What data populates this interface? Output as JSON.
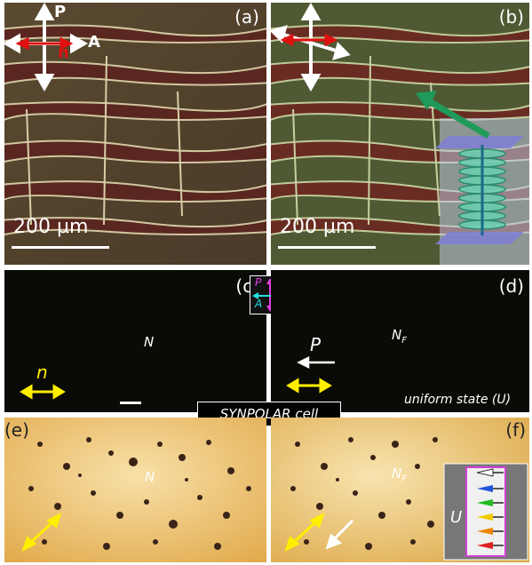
{
  "panels": {
    "a": {
      "label": "(a)",
      "scale": "200 µm",
      "polarizer": "P",
      "analyzer": "A",
      "director": "n"
    },
    "b": {
      "label": "(b)",
      "scale": "200 µm"
    },
    "c": {
      "label": "(c)",
      "phase": "N",
      "director": "n"
    },
    "d": {
      "label": "(d)",
      "phase": "N",
      "phase_sub": "F",
      "polarization": "P",
      "state": "uniform state (U)"
    },
    "e": {
      "label": "(e)",
      "phase": "N"
    },
    "f": {
      "label": "(f)",
      "phase": "N",
      "phase_sub": "F",
      "inset_label": "U"
    }
  },
  "crossed_polarizer_key": {
    "p": "P",
    "a": "A",
    "p_color": "#e040e0",
    "a_color": "#20e0e0"
  },
  "caption": "SYNPOLAR cell",
  "colors": {
    "director_arrow": "#ffee00",
    "stripe": "#6b2a22",
    "background_green": "#4e5a35"
  }
}
